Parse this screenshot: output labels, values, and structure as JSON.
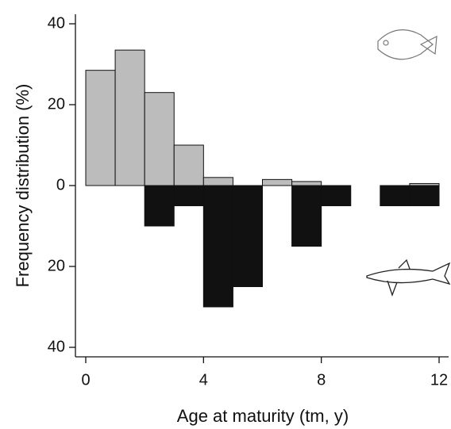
{
  "chart_data": {
    "type": "histogram",
    "x_label": "Age at maturity (tm, y)",
    "y_label": "Frequency distribution (%)",
    "bins": [
      0,
      1,
      2,
      3,
      4,
      5,
      6,
      7,
      8,
      9,
      10,
      11,
      12
    ],
    "series": [
      {
        "color": "#bcbcbc",
        "values": [
          28.5,
          33.5,
          23,
          10,
          2,
          0,
          1.5,
          1,
          0,
          0,
          0,
          0.5
        ]
      },
      {
        "color": "#111111",
        "values": [
          0,
          0,
          -10,
          -5,
          -30,
          -25,
          0,
          -15,
          -5,
          0,
          -5,
          -5
        ]
      }
    ],
    "xlim": [
      0,
      12
    ],
    "xticks": [
      0,
      4,
      8,
      12
    ],
    "ylim": [
      -40,
      40
    ],
    "yticks": [
      {
        "value": -40,
        "label": "40"
      },
      {
        "value": -20,
        "label": "20"
      },
      0,
      20,
      40
    ]
  }
}
